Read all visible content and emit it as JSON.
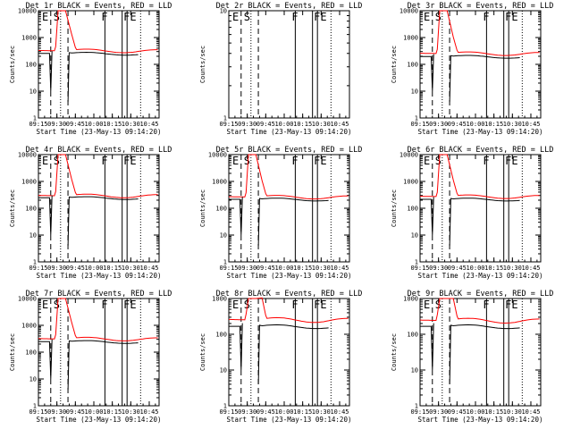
{
  "chart_data": [
    {
      "type": "line",
      "title": "Det 1r BLACK = Events, RED = LLD",
      "xlabel": "Start Time (23-May-13 09:14:20)",
      "ylabel": "Counts/sec",
      "yscale": "log",
      "ylim": [
        1,
        10000
      ],
      "xlim": [
        "09:15",
        "10:53"
      ],
      "x_ticks": [
        "09:15",
        "09:30",
        "09:45",
        "10:00",
        "10:15",
        "10:30",
        "10:45"
      ],
      "y_ticks": [
        "1",
        "10",
        "100",
        "1000",
        "10000"
      ],
      "event_letters": [
        "E",
        "S",
        "F",
        "FE"
      ],
      "has_data": true,
      "lld_level": 330,
      "events_level": 260
    },
    {
      "type": "line",
      "title": "Det 2r BLACK = Events, RED = LLD",
      "xlabel": "Start Time (23-May-13 09:14:20)",
      "ylabel": "Counts/sec",
      "yscale": "log",
      "ylim": [
        1,
        10
      ],
      "xlim": [
        "09:15",
        "10:53"
      ],
      "x_ticks": [
        "09:15",
        "09:30",
        "09:45",
        "10:00",
        "10:15",
        "10:30",
        "10:45"
      ],
      "y_ticks": [
        "1",
        "10"
      ],
      "event_letters": [
        "E",
        "S",
        "F",
        "FE"
      ],
      "has_data": false
    },
    {
      "type": "line",
      "title": "Det 3r BLACK = Events, RED = LLD",
      "xlabel": "Start Time (23-May-13 09:14:20)",
      "ylabel": "Counts/sec",
      "yscale": "log",
      "ylim": [
        1,
        10000
      ],
      "xlim": [
        "09:15",
        "10:53"
      ],
      "x_ticks": [
        "09:15",
        "09:30",
        "09:45",
        "10:00",
        "10:15",
        "10:30",
        "10:45"
      ],
      "y_ticks": [
        "1",
        "10",
        "100",
        "1000",
        "10000"
      ],
      "event_letters": [
        "E",
        "S",
        "F",
        "FE"
      ],
      "has_data": true,
      "lld_level": 260,
      "events_level": 200
    },
    {
      "type": "line",
      "title": "Det 4r BLACK = Events, RED = LLD",
      "xlabel": "Start Time (23-May-13 09:14:20)",
      "ylabel": "Counts/sec",
      "yscale": "log",
      "ylim": [
        1,
        10000
      ],
      "xlim": [
        "09:15",
        "10:53"
      ],
      "x_ticks": [
        "09:15",
        "09:30",
        "09:45",
        "10:00",
        "10:15",
        "10:30",
        "10:45"
      ],
      "y_ticks": [
        "1",
        "10",
        "100",
        "1000",
        "10000"
      ],
      "event_letters": [
        "E",
        "S",
        "F",
        "FE"
      ],
      "has_data": true,
      "lld_level": 300,
      "events_level": 250
    },
    {
      "type": "line",
      "title": "Det 5r BLACK = Events, RED = LLD",
      "xlabel": "Start Time (23-May-13 09:14:20)",
      "ylabel": "Counts/sec",
      "yscale": "log",
      "ylim": [
        1,
        10000
      ],
      "xlim": [
        "09:15",
        "10:53"
      ],
      "x_ticks": [
        "09:15",
        "09:30",
        "09:45",
        "10:00",
        "10:15",
        "10:30",
        "10:45"
      ],
      "y_ticks": [
        "1",
        "10",
        "100",
        "1000",
        "10000"
      ],
      "event_letters": [
        "E",
        "S",
        "F",
        "FE"
      ],
      "has_data": true,
      "lld_level": 270,
      "events_level": 220
    },
    {
      "type": "line",
      "title": "Det 6r BLACK = Events, RED = LLD",
      "xlabel": "Start Time (23-May-13 09:14:20)",
      "ylabel": "Counts/sec",
      "yscale": "log",
      "ylim": [
        1,
        10000
      ],
      "xlim": [
        "09:15",
        "10:53"
      ],
      "x_ticks": [
        "09:15",
        "09:30",
        "09:45",
        "10:00",
        "10:15",
        "10:30",
        "10:45"
      ],
      "y_ticks": [
        "1",
        "10",
        "100",
        "1000",
        "10000"
      ],
      "event_letters": [
        "E",
        "S",
        "F",
        "FE"
      ],
      "has_data": true,
      "lld_level": 280,
      "events_level": 220
    },
    {
      "type": "line",
      "title": "Det 7r BLACK = Events, RED = LLD",
      "xlabel": "Start Time (23-May-13 09:14:20)",
      "ylabel": "Counts/sec",
      "yscale": "log",
      "ylim": [
        1,
        10000
      ],
      "xlim": [
        "09:15",
        "10:53"
      ],
      "x_ticks": [
        "09:15",
        "09:30",
        "09:45",
        "10:00",
        "10:15",
        "10:30",
        "10:45"
      ],
      "y_ticks": [
        "1",
        "10",
        "100",
        "1000",
        "10000"
      ],
      "event_letters": [
        "E",
        "S",
        "F",
        "FE"
      ],
      "has_data": true,
      "lld_level": 320,
      "events_level": 250
    },
    {
      "type": "line",
      "title": "Det 8r BLACK = Events, RED = LLD",
      "xlabel": "Start Time (23-May-13 09:14:20)",
      "ylabel": "Counts/sec",
      "yscale": "log",
      "ylim": [
        1,
        1000
      ],
      "xlim": [
        "09:15",
        "10:53"
      ],
      "x_ticks": [
        "09:15",
        "09:30",
        "09:45",
        "10:00",
        "10:15",
        "10:30",
        "10:45"
      ],
      "y_ticks": [
        "1",
        "10",
        "100",
        "1000"
      ],
      "event_letters": [
        "E",
        "S",
        "F",
        "FE"
      ],
      "has_data": true,
      "lld_level": 260,
      "events_level": 170
    },
    {
      "type": "line",
      "title": "Det 9r BLACK = Events, RED = LLD",
      "xlabel": "Start Time (23-May-13 09:14:20)",
      "ylabel": "Counts/sec",
      "yscale": "log",
      "ylim": [
        1,
        1000
      ],
      "xlim": [
        "09:15",
        "10:53"
      ],
      "x_ticks": [
        "09:15",
        "09:30",
        "09:45",
        "10:00",
        "10:15",
        "10:30",
        "10:45"
      ],
      "y_ticks": [
        "1",
        "10",
        "100",
        "1000"
      ],
      "event_letters": [
        "E",
        "S",
        "F",
        "FE"
      ],
      "has_data": true,
      "lld_level": 250,
      "events_level": 170
    }
  ],
  "event_times": {
    "dashed": [
      "09:25",
      "09:39"
    ],
    "dotted": [
      "09:33",
      "10:38"
    ],
    "solid": [
      "10:09",
      "10:23",
      "10:27"
    ]
  },
  "colors": {
    "events": "#000000",
    "lld": "#ff0000",
    "axis": "#000000",
    "background": "#ffffff"
  }
}
